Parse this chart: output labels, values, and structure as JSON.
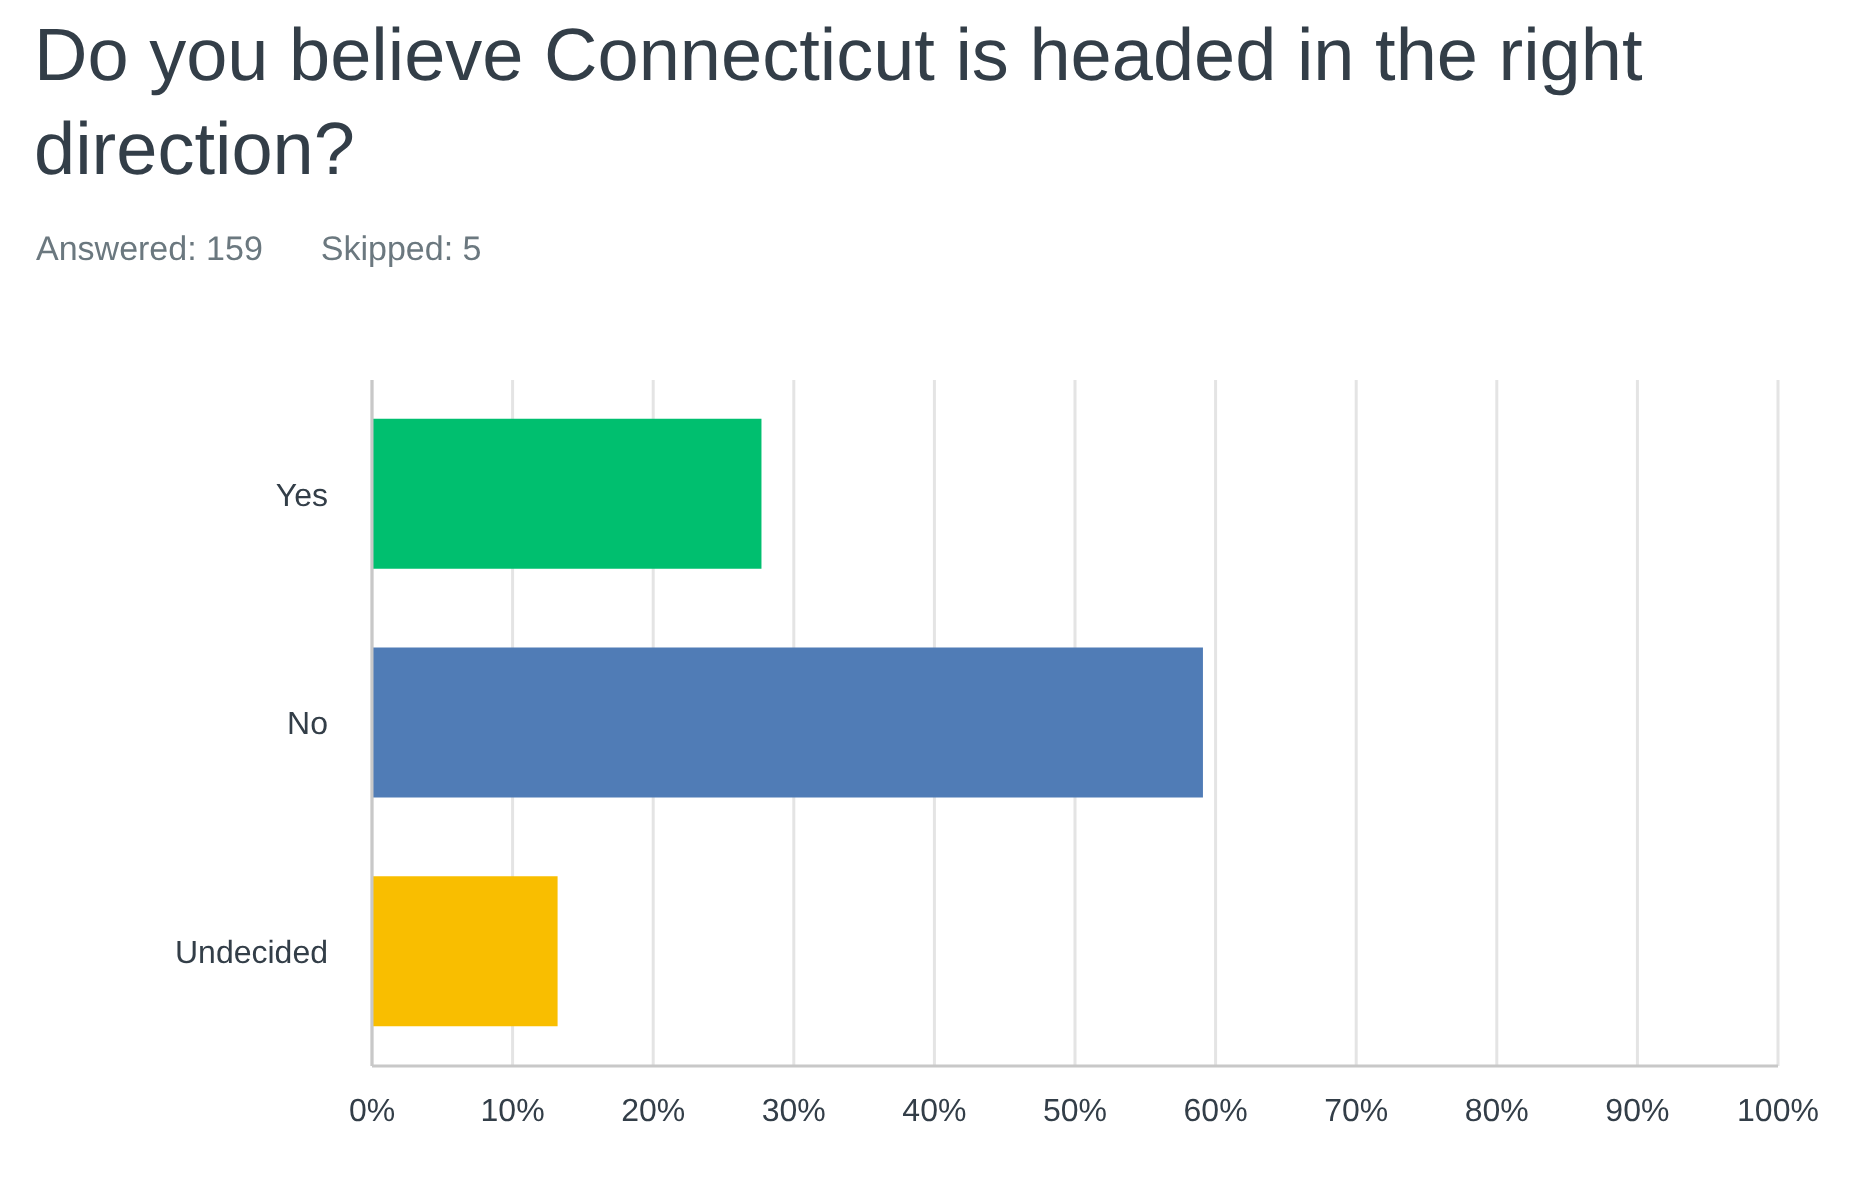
{
  "chart_data": {
    "type": "bar",
    "orientation": "horizontal",
    "title": "Do you believe Connecticut is headed in the right direction?",
    "annotations": [
      "Answered: 159",
      "Skipped: 5"
    ],
    "categories": [
      "Yes",
      "No",
      "Undecided"
    ],
    "values": [
      27.7,
      59.1,
      13.2
    ],
    "colors": [
      "#00bf6f",
      "#507cb6",
      "#f9be00"
    ],
    "xlim": [
      0,
      100
    ],
    "xticks": [
      {
        "value": 0,
        "label": "0%"
      },
      {
        "value": 10,
        "label": "10%"
      },
      {
        "value": 20,
        "label": "20%"
      },
      {
        "value": 30,
        "label": "30%"
      },
      {
        "value": 40,
        "label": "40%"
      },
      {
        "value": 50,
        "label": "50%"
      },
      {
        "value": 60,
        "label": "60%"
      },
      {
        "value": 70,
        "label": "70%"
      },
      {
        "value": 80,
        "label": "80%"
      },
      {
        "value": 90,
        "label": "90%"
      },
      {
        "value": 100,
        "label": "100%"
      }
    ],
    "grid": "x"
  }
}
